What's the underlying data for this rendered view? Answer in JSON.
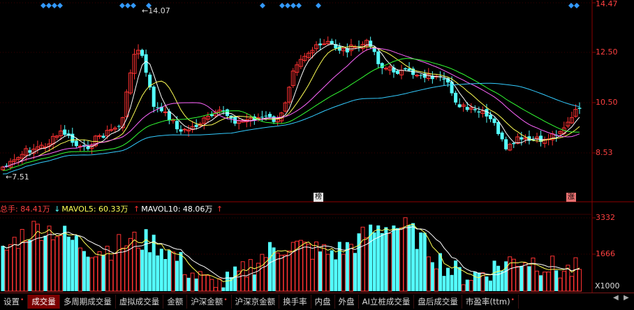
{
  "price_axis": {
    "labels": [
      "14.47",
      "12.50",
      "10.50",
      "8.53"
    ],
    "color": "#ff4040"
  },
  "annotations": {
    "high": "14.07",
    "low": "7.51"
  },
  "badges": {
    "bang": "榜",
    "zhang": "涨"
  },
  "volume": {
    "axis_labels": [
      "3332",
      "1666",
      "X1000"
    ],
    "total_label": "总手: 84.41万",
    "mavol5_label": "MAVOL5: 60.33万",
    "mavol10_label": "MAVOL10: 48.06万"
  },
  "tabs": [
    {
      "label": "设置",
      "dot": true
    },
    {
      "label": "成交量",
      "active": true
    },
    {
      "label": "多周期成交量"
    },
    {
      "label": "虚拟成交量"
    },
    {
      "label": "金额"
    },
    {
      "label": "沪深金额",
      "dot": true
    },
    {
      "label": "沪深京金额"
    },
    {
      "label": "换手率"
    },
    {
      "label": "内盘"
    },
    {
      "label": "外盘"
    },
    {
      "label": "AI立桩成交量"
    },
    {
      "label": "盘后成交量"
    },
    {
      "label": "市盈率(ttm)",
      "dot": true
    }
  ],
  "nav": {
    "prev": "◀",
    "next": "▶"
  },
  "colors": {
    "up": "#ff3232",
    "down": "#54ffff",
    "ma5": "#ffffff",
    "ma10": "#ffff55",
    "ma20": "#ff66ff",
    "ma30": "#33ff33",
    "ma60": "#33ccff",
    "grid": "#8b0000"
  }
}
